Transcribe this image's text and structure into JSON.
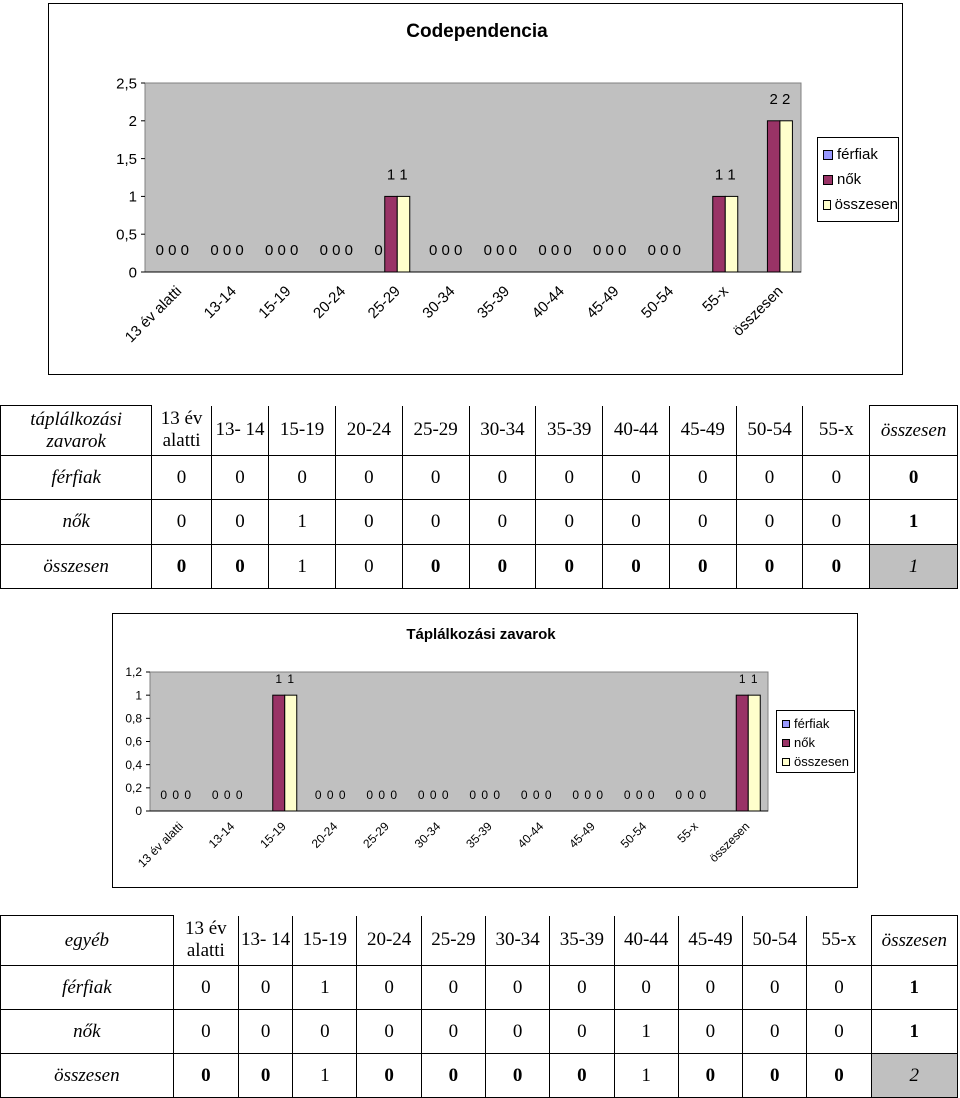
{
  "chart_data": [
    {
      "type": "bar",
      "title": "Codependencia",
      "categories": [
        "13 év alatti",
        "13-14",
        "15-19",
        "20-24",
        "25-29",
        "30-34",
        "35-39",
        "40-44",
        "45-49",
        "50-54",
        "55-x",
        "összesen"
      ],
      "series": [
        {
          "name": "férfiak",
          "color": "#9999ff",
          "values": [
            0,
            0,
            0,
            0,
            0,
            0,
            0,
            0,
            0,
            0,
            0,
            0
          ],
          "labels": [
            "0",
            "0",
            "0",
            "0",
            "0",
            "0",
            "0",
            "0",
            "0",
            "0",
            "",
            ""
          ]
        },
        {
          "name": "nők",
          "color": "#993366",
          "values": [
            0,
            0,
            0,
            0,
            1,
            0,
            0,
            0,
            0,
            0,
            1,
            2
          ],
          "labels": [
            "0",
            "0",
            "0",
            "0",
            "1",
            "0",
            "0",
            "0",
            "0",
            "0",
            "1",
            "2"
          ]
        },
        {
          "name": "összesen",
          "color": "#ffffcc",
          "values": [
            0,
            0,
            0,
            0,
            1,
            0,
            0,
            0,
            0,
            0,
            1,
            2
          ],
          "labels": [
            "0",
            "0",
            "0",
            "0",
            "1",
            "0",
            "0",
            "0",
            "0",
            "0",
            "1",
            "2"
          ]
        }
      ],
      "yticks": [
        "0",
        "0,5",
        "1",
        "1,5",
        "2",
        "2,5"
      ],
      "ylim": [
        0,
        2.5
      ],
      "legend_position": "right",
      "grid": false
    },
    {
      "type": "bar",
      "title": "Táplálkozási zavarok",
      "categories": [
        "13 év alatti",
        "13-14",
        "15-19",
        "20-24",
        "25-29",
        "30-34",
        "35-39",
        "40-44",
        "45-49",
        "50-54",
        "55-x",
        "összesen"
      ],
      "series": [
        {
          "name": "férfiak",
          "color": "#9999ff",
          "values": [
            0,
            0,
            0,
            0,
            0,
            0,
            0,
            0,
            0,
            0,
            0,
            0
          ],
          "labels": [
            "0",
            "0",
            "",
            "0",
            "0",
            "0",
            "0",
            "0",
            "0",
            "0",
            "0",
            ""
          ]
        },
        {
          "name": "nők",
          "color": "#993366",
          "values": [
            0,
            0,
            1,
            0,
            0,
            0,
            0,
            0,
            0,
            0,
            0,
            1
          ],
          "labels": [
            "0",
            "0",
            "1",
            "0",
            "0",
            "0",
            "0",
            "0",
            "0",
            "0",
            "0",
            "1"
          ]
        },
        {
          "name": "összesen",
          "color": "#ffffcc",
          "values": [
            0,
            0,
            1,
            0,
            0,
            0,
            0,
            0,
            0,
            0,
            0,
            1
          ],
          "labels": [
            "0",
            "0",
            "1",
            "0",
            "0",
            "0",
            "0",
            "0",
            "0",
            "0",
            "0",
            "1"
          ]
        }
      ],
      "yticks": [
        "0",
        "0,2",
        "0,4",
        "0,6",
        "0,8",
        "1",
        "1,2"
      ],
      "ylim": [
        0,
        1.2
      ],
      "legend_position": "right",
      "grid": false
    }
  ],
  "table1": {
    "label_header": "táplálkozási zavarok",
    "cols": [
      "13 év alatti",
      "13- 14",
      "15-19",
      "20-24",
      "25-29",
      "30-34",
      "35-39",
      "40-44",
      "45-49",
      "50-54",
      "55-x",
      "összesen"
    ],
    "rows": [
      {
        "label": "férfiak",
        "values": [
          "0",
          "0",
          "0",
          "0",
          "0",
          "0",
          "0",
          "0",
          "0",
          "0",
          "0",
          "0"
        ]
      },
      {
        "label": "nők",
        "values": [
          "0",
          "0",
          "1",
          "0",
          "0",
          "0",
          "0",
          "0",
          "0",
          "0",
          "0",
          "1"
        ]
      },
      {
        "label": "összesen",
        "values": [
          "0",
          "0",
          "1",
          "0",
          "0",
          "0",
          "0",
          "0",
          "0",
          "0",
          "0",
          "1"
        ]
      }
    ]
  },
  "table2": {
    "label_header": "egyéb",
    "cols": [
      "13 év alatti",
      "13- 14",
      "15-19",
      "20-24",
      "25-29",
      "30-34",
      "35-39",
      "40-44",
      "45-49",
      "50-54",
      "55-x",
      "összesen"
    ],
    "rows": [
      {
        "label": "férfiak",
        "values": [
          "0",
          "0",
          "1",
          "0",
          "0",
          "0",
          "0",
          "0",
          "0",
          "0",
          "0",
          "1"
        ]
      },
      {
        "label": "nők",
        "values": [
          "0",
          "0",
          "0",
          "0",
          "0",
          "0",
          "0",
          "1",
          "0",
          "0",
          "0",
          "1"
        ]
      },
      {
        "label": "összesen",
        "values": [
          "0",
          "0",
          "1",
          "0",
          "0",
          "0",
          "0",
          "1",
          "0",
          "0",
          "0",
          "2"
        ]
      }
    ]
  }
}
